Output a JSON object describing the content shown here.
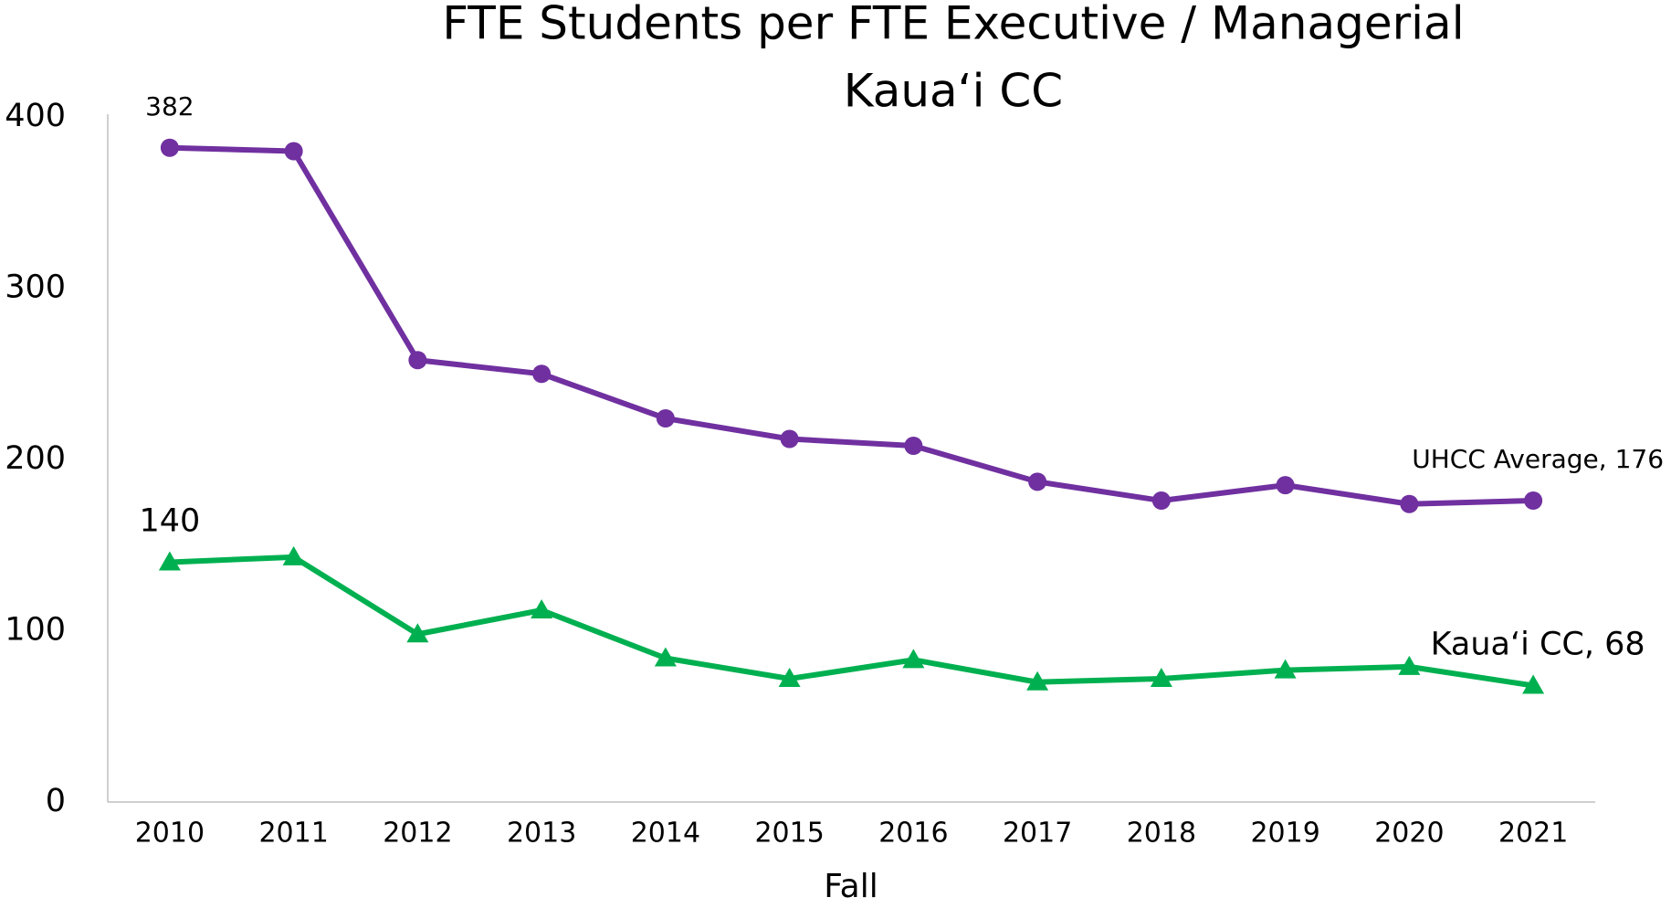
{
  "chart_data": {
    "type": "line",
    "title": "FTE Students per FTE Executive / Managerial",
    "subtitle": "Kaua‘i CC",
    "x_label": "Fall",
    "categories": [
      "2010",
      "2011",
      "2012",
      "2013",
      "2014",
      "2015",
      "2016",
      "2017",
      "2018",
      "2019",
      "2020",
      "2021"
    ],
    "series": [
      {
        "name": "UHCC Average",
        "color": "#7030a0",
        "marker": "circle",
        "values": [
          382,
          380,
          258,
          250,
          224,
          212,
          208,
          187,
          176,
          185,
          174,
          176
        ],
        "value_labels": [
          "382",
          null,
          null,
          null,
          null,
          null,
          null,
          null,
          null,
          null,
          null,
          "UHCC Average, 176"
        ]
      },
      {
        "name": "Kaua‘i CC",
        "color": "#00b050",
        "marker": "triangle",
        "values": [
          140,
          143,
          98,
          112,
          84,
          72,
          83,
          70,
          72,
          77,
          79,
          68
        ],
        "value_labels": [
          "140",
          null,
          null,
          null,
          null,
          null,
          null,
          null,
          null,
          null,
          null,
          "Kaua‘i CC, 68"
        ]
      }
    ],
    "ylim": [
      0,
      400
    ],
    "yticks": [
      0,
      100,
      200,
      300,
      400
    ],
    "grid": false
  }
}
